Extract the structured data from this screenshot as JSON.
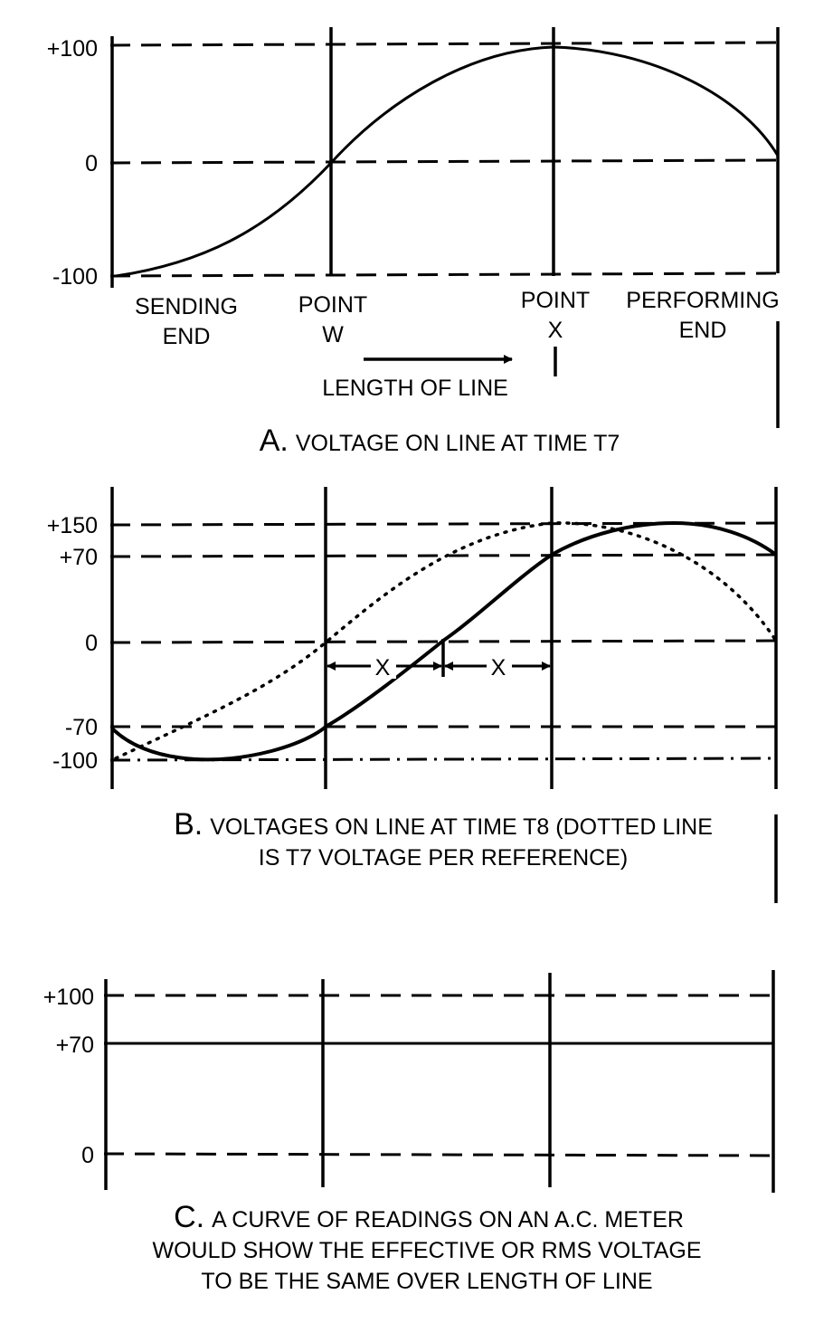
{
  "panel_a": {
    "ticks": [
      "+100",
      "0",
      "-100"
    ],
    "sending_end": [
      "SENDING",
      "END"
    ],
    "point_w": [
      "POINT",
      "W"
    ],
    "point_x": [
      "POINT",
      "X"
    ],
    "performing_end": [
      "PERFORMING",
      "END"
    ],
    "length_of_line": "LENGTH OF LINE",
    "caption_letter": "A.",
    "caption_text": "VOLTAGE ON LINE AT TIME T7"
  },
  "panel_b": {
    "ticks": [
      "+150",
      "+70",
      "0",
      "-70",
      "-100"
    ],
    "x_labels": [
      "X",
      "X"
    ],
    "caption_letter": "B.",
    "caption_line1": "VOLTAGES ON LINE AT TIME T8 (DOTTED LINE",
    "caption_line2": "IS T7 VOLTAGE PER REFERENCE)"
  },
  "panel_c": {
    "ticks": [
      "+100",
      "+70",
      "0"
    ],
    "caption_letter": "C.",
    "caption_line1": "A CURVE OF READINGS ON AN A.C. METER",
    "caption_line2": "WOULD SHOW THE EFFECTIVE OR RMS VOLTAGE",
    "caption_line3": "TO BE THE SAME OVER LENGTH OF LINE"
  },
  "colors": {
    "ink": "#000000",
    "paper": "#ffffff"
  }
}
